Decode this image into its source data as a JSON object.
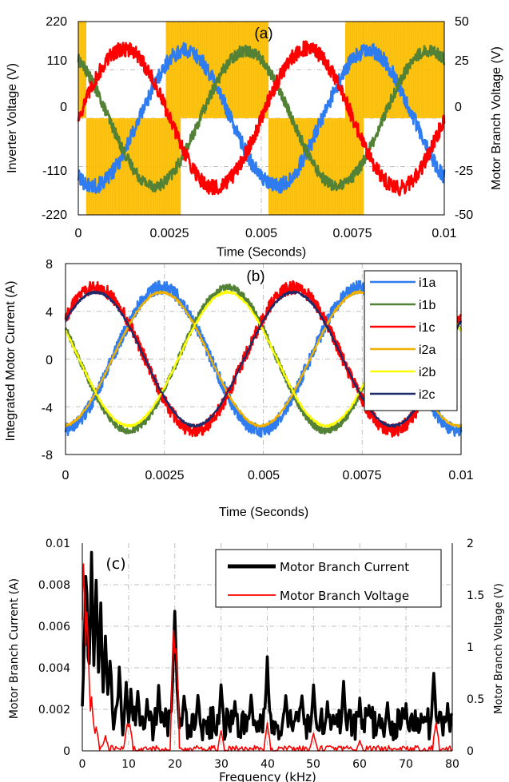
{
  "colors": {
    "phase_a": "#2E7CF0",
    "phase_b": "#538135",
    "phase_c": "#FF0000",
    "inverter": "#FFC000",
    "i2a": "#F0B000",
    "i2b": "#FFFF00",
    "i2c": "#1F2A6B",
    "current_spectrum": "#000000",
    "voltage_spectrum": "#FF0000",
    "grid": "#BFBFBF"
  },
  "chart_data": [
    {
      "id": "a",
      "type": "line",
      "panel_label": "(a)",
      "xlabel": "Time (Seconds)",
      "ylabel": "Inverter Voltage (V)",
      "y2label": "Motor Branch Voltage (V)",
      "xlim": [
        0,
        0.01
      ],
      "ylim": [
        -220,
        220
      ],
      "y2lim": [
        -50,
        50
      ],
      "xticks": [
        "0",
        "0.0025",
        "0.005",
        "0.0075",
        "0.01"
      ],
      "yticks": [
        "220",
        "110",
        "0",
        "-110",
        "-220"
      ],
      "y2ticks": [
        "50",
        "25",
        "0",
        "-25",
        "-50"
      ],
      "grid": true,
      "fundamental_hz": 200,
      "series": [
        {
          "axis": "y2",
          "color_key": "phase_a",
          "amplitude": 35,
          "phase_deg": -120,
          "noise": 4
        },
        {
          "axis": "y2",
          "color_key": "phase_b",
          "amplitude": 35,
          "phase_deg": 120,
          "noise": 3
        },
        {
          "axis": "y2",
          "color_key": "phase_c",
          "amplitude": 36,
          "phase_deg": 0,
          "noise": 4
        },
        {
          "axis": "y1",
          "color_key": "inverter",
          "kind": "pwm",
          "segments": [
            {
              "x": [
                0,
                0.00022
              ],
              "level": "upper"
            },
            {
              "x": [
                0.00022,
                0.0024
              ],
              "level": "lower"
            },
            {
              "x": [
                0.0024,
                0.0028
              ],
              "level": "band"
            },
            {
              "x": [
                0.0028,
                0.0052
              ],
              "level": "upper"
            },
            {
              "x": [
                0.0052,
                0.0073
              ],
              "level": "lower"
            },
            {
              "x": [
                0.0073,
                0.0078
              ],
              "level": "band"
            },
            {
              "x": [
                0.0078,
                0.01
              ],
              "level": "upper"
            }
          ]
        }
      ]
    },
    {
      "id": "b",
      "type": "line",
      "panel_label": "(b)",
      "xlabel": "Time (Seconds)",
      "ylabel": "Integrated Motor Current (A)",
      "xlim": [
        0,
        0.01
      ],
      "ylim": [
        -8,
        8
      ],
      "xticks": [
        "0",
        "0.0025",
        "0.005",
        "0.0075",
        "0.01"
      ],
      "yticks": [
        "8",
        "4",
        "0",
        "-4",
        "-8"
      ],
      "grid": true,
      "legend": "top-right",
      "fundamental_hz": 200,
      "series": [
        {
          "name": "i1a",
          "color_key": "phase_a",
          "amplitude": 6.0,
          "phase_deg": -85,
          "noise": 0.55
        },
        {
          "name": "i1b",
          "color_key": "phase_b",
          "amplitude": 6.0,
          "phase_deg": 155,
          "noise": 0.3
        },
        {
          "name": "i1c",
          "color_key": "phase_c",
          "amplitude": 6.0,
          "phase_deg": 35,
          "noise": 0.55
        },
        {
          "name": "i2a",
          "color_key": "i2a",
          "amplitude": 5.6,
          "phase_deg": -85,
          "noise": 0.1
        },
        {
          "name": "i2b",
          "color_key": "i2b",
          "amplitude": 5.6,
          "phase_deg": 155,
          "noise": 0.1
        },
        {
          "name": "i2c",
          "color_key": "i2c",
          "amplitude": 5.6,
          "phase_deg": 35,
          "noise": 0.1
        }
      ]
    },
    {
      "id": "c",
      "type": "line",
      "panel_label": "(c)",
      "xlabel": "Frequency (kHz)",
      "ylabel": "Motor Branch Current (A)",
      "y2label": "Motor Branch Voltage (V)",
      "xlim": [
        0,
        80
      ],
      "ylim": [
        0,
        0.01
      ],
      "y2lim": [
        0,
        2
      ],
      "xticks": [
        "0",
        "10",
        "20",
        "30",
        "40",
        "50",
        "60",
        "70",
        "80"
      ],
      "yticks": [
        "0.01",
        "0.008",
        "0.006",
        "0.004",
        "0.002",
        "0"
      ],
      "y2ticks": [
        "2",
        "1.5",
        "1",
        "0.5",
        "0"
      ],
      "grid": true,
      "legend": "top-right",
      "series": [
        {
          "name": "Motor Branch Current",
          "axis": "y1",
          "color_key": "current_spectrum",
          "baseline": 0.0013,
          "noise": 0.0008,
          "peaks": [
            {
              "x": 0.8,
              "y": 0.01
            },
            {
              "x": 2.0,
              "y": 0.01
            },
            {
              "x": 3.0,
              "y": 0.0088
            },
            {
              "x": 4.0,
              "y": 0.0074
            },
            {
              "x": 5.0,
              "y": 0.0062
            },
            {
              "x": 6.0,
              "y": 0.005
            },
            {
              "x": 8.0,
              "y": 0.0042
            },
            {
              "x": 9.5,
              "y": 0.0036
            },
            {
              "x": 10.5,
              "y": 0.003
            },
            {
              "x": 12.0,
              "y": 0.0032
            },
            {
              "x": 14.0,
              "y": 0.0026
            },
            {
              "x": 16.5,
              "y": 0.0032
            },
            {
              "x": 20.0,
              "y": 0.0079
            },
            {
              "x": 22.0,
              "y": 0.003
            },
            {
              "x": 25.0,
              "y": 0.0031
            },
            {
              "x": 30.0,
              "y": 0.0034
            },
            {
              "x": 33.0,
              "y": 0.0026
            },
            {
              "x": 36.5,
              "y": 0.0031
            },
            {
              "x": 40.0,
              "y": 0.0047
            },
            {
              "x": 44.0,
              "y": 0.003
            },
            {
              "x": 47.5,
              "y": 0.0031
            },
            {
              "x": 50.0,
              "y": 0.0034
            },
            {
              "x": 53.0,
              "y": 0.0025
            },
            {
              "x": 56.5,
              "y": 0.0036
            },
            {
              "x": 60.0,
              "y": 0.0026
            },
            {
              "x": 62.0,
              "y": 0.0025
            },
            {
              "x": 66.0,
              "y": 0.0026
            },
            {
              "x": 70.0,
              "y": 0.0024
            },
            {
              "x": 76.0,
              "y": 0.0043
            },
            {
              "x": 79.0,
              "y": 0.0024
            }
          ]
        },
        {
          "name": "Motor Branch Voltage",
          "axis": "y2",
          "color_key": "voltage_spectrum",
          "baseline": 0.02,
          "noise": 0.03,
          "peaks": [
            {
              "x": 0.3,
              "y": 2.0
            },
            {
              "x": 1.0,
              "y": 1.55
            },
            {
              "x": 2.0,
              "y": 0.55
            },
            {
              "x": 3.0,
              "y": 0.25
            },
            {
              "x": 5.0,
              "y": 0.15
            },
            {
              "x": 9.8,
              "y": 0.32
            },
            {
              "x": 10.3,
              "y": 0.28
            },
            {
              "x": 19.8,
              "y": 1.3
            },
            {
              "x": 20.3,
              "y": 1.15
            },
            {
              "x": 30.0,
              "y": 0.2
            },
            {
              "x": 40.0,
              "y": 0.27
            },
            {
              "x": 50.0,
              "y": 0.18
            },
            {
              "x": 60.0,
              "y": 0.1
            },
            {
              "x": 76.5,
              "y": 0.3
            }
          ]
        }
      ]
    }
  ]
}
